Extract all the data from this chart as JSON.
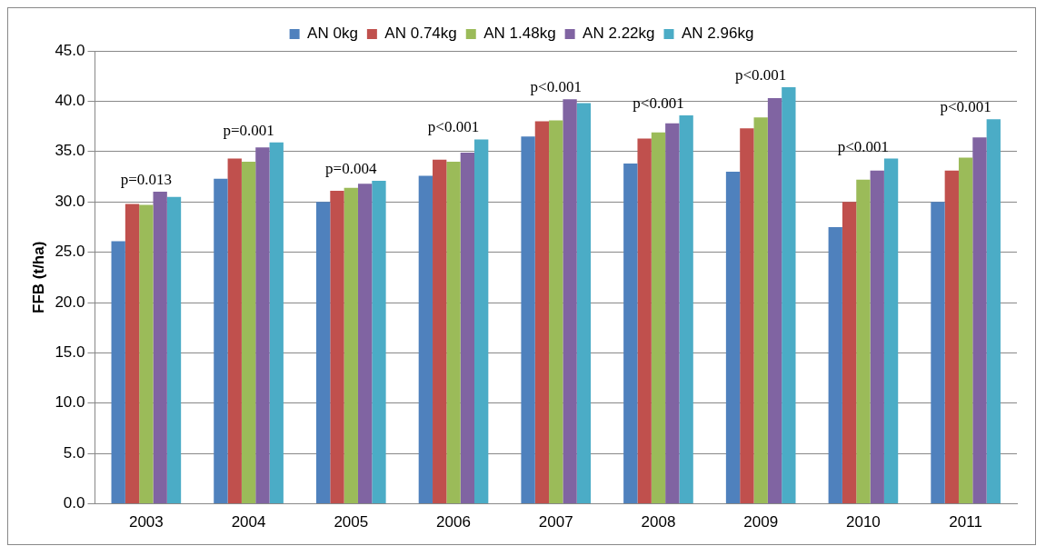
{
  "chart_data": {
    "type": "bar",
    "ylabel": "FFB (t/ha)",
    "categories": [
      "2003",
      "2004",
      "2005",
      "2006",
      "2007",
      "2008",
      "2009",
      "2010",
      "2011"
    ],
    "series": [
      {
        "name": "AN 0kg",
        "color": "#4f81bd",
        "values": [
          26.1,
          32.3,
          30.0,
          32.6,
          36.5,
          33.8,
          33.0,
          27.5,
          30.0
        ]
      },
      {
        "name": "AN 0.74kg",
        "color": "#c0504d",
        "values": [
          29.8,
          34.3,
          31.1,
          34.2,
          38.0,
          36.3,
          37.3,
          30.0,
          33.1
        ]
      },
      {
        "name": "AN 1.48kg",
        "color": "#9bbb59",
        "values": [
          29.7,
          34.0,
          31.4,
          34.0,
          38.1,
          36.9,
          38.4,
          32.2,
          34.4
        ]
      },
      {
        "name": "AN 2.22kg",
        "color": "#8064a2",
        "values": [
          31.0,
          35.4,
          31.8,
          34.9,
          40.2,
          37.8,
          40.3,
          33.1,
          36.4
        ]
      },
      {
        "name": "AN 2.96kg",
        "color": "#4bacc6",
        "values": [
          30.5,
          35.9,
          32.1,
          36.2,
          39.8,
          38.6,
          41.4,
          34.3,
          38.2
        ]
      }
    ],
    "ylim": [
      0,
      45
    ],
    "yticks": [
      {
        "value": 0,
        "label": "0.0"
      },
      {
        "value": 5,
        "label": "5.0"
      },
      {
        "value": 10,
        "label": "10.0"
      },
      {
        "value": 15,
        "label": "15.0"
      },
      {
        "value": 20,
        "label": "20.0"
      },
      {
        "value": 25,
        "label": "25.0"
      },
      {
        "value": 30,
        "label": "30.0"
      },
      {
        "value": 35,
        "label": "35.0"
      },
      {
        "value": 40,
        "label": "40.0"
      },
      {
        "value": 45,
        "label": "45.0"
      }
    ],
    "grid": "y",
    "legend": "top",
    "annotations": [
      "p=0.013",
      "p=0.001",
      "p=0.004",
      "p<0.001",
      "p<0.001",
      "p<0.001",
      "p<0.001",
      "p<0.001",
      "p<0.001"
    ]
  }
}
